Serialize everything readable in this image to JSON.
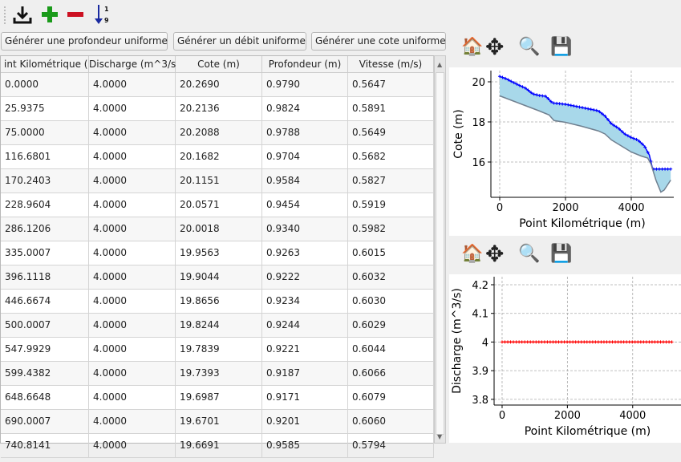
{
  "toolbar": {
    "icons": [
      "import-icon",
      "add-row-icon",
      "remove-row-icon",
      "sort-ascending-icon"
    ],
    "sort_label_top": "1",
    "sort_label_bottom": "9",
    "colors": {
      "add": "#1a9a1a",
      "remove": "#cc1122",
      "sort": "#1a2aa0"
    }
  },
  "buttons": {
    "uniform_depth": "Générer une profondeur uniforme",
    "uniform_discharge": "Générer un débit uniforme",
    "uniform_elevation": "Générer une cote uniforme"
  },
  "table": {
    "columns": [
      "int Kilométrique (",
      "Discharge (m^3/s)",
      "Cote (m)",
      "Profondeur (m)",
      "Vitesse (m/s)"
    ],
    "rows": [
      [
        "0.0000",
        "4.0000",
        "20.2690",
        "0.9790",
        "0.5647"
      ],
      [
        "25.9375",
        "4.0000",
        "20.2136",
        "0.9824",
        "0.5891"
      ],
      [
        "75.0000",
        "4.0000",
        "20.2088",
        "0.9788",
        "0.5649"
      ],
      [
        "116.6801",
        "4.0000",
        "20.1682",
        "0.9704",
        "0.5682"
      ],
      [
        "170.2403",
        "4.0000",
        "20.1151",
        "0.9584",
        "0.5827"
      ],
      [
        "228.9604",
        "4.0000",
        "20.0571",
        "0.9454",
        "0.5919"
      ],
      [
        "286.1206",
        "4.0000",
        "20.0018",
        "0.9340",
        "0.5982"
      ],
      [
        "335.0007",
        "4.0000",
        "19.9563",
        "0.9263",
        "0.6015"
      ],
      [
        "396.1118",
        "4.0000",
        "19.9044",
        "0.9222",
        "0.6032"
      ],
      [
        "446.6674",
        "4.0000",
        "19.8656",
        "0.9234",
        "0.6030"
      ],
      [
        "500.0007",
        "4.0000",
        "19.8244",
        "0.9244",
        "0.6029"
      ],
      [
        "547.9929",
        "4.0000",
        "19.7839",
        "0.9221",
        "0.6044"
      ],
      [
        "599.4382",
        "4.0000",
        "19.7393",
        "0.9187",
        "0.6066"
      ],
      [
        "648.6648",
        "4.0000",
        "19.6987",
        "0.9171",
        "0.6079"
      ],
      [
        "690.0007",
        "4.0000",
        "19.6701",
        "0.9201",
        "0.6060"
      ],
      [
        "740.8141",
        "4.0000",
        "19.6691",
        "0.9585",
        "0.5794"
      ]
    ]
  },
  "plot_toolbar": {
    "icons": [
      "home-icon",
      "pan-icon",
      "zoom-icon",
      "save-icon"
    ]
  },
  "chart_data": [
    {
      "type": "area",
      "xlabel": "Point Kilométrique (m)",
      "ylabel": "Cote (m)",
      "xlim": [
        -268,
        5293
      ],
      "ylim": [
        14.24,
        20.56
      ],
      "xticks": [
        0,
        2000,
        4000
      ],
      "yticks": [
        16,
        18,
        20
      ],
      "grid": true,
      "series": [
        {
          "role": "water-surface",
          "color": "#0000ff",
          "marker": "+",
          "x": [
            0,
            200,
            400,
            600,
            800,
            1000,
            1200,
            1400,
            1600,
            2000,
            2400,
            2800,
            3000,
            3200,
            3400,
            3600,
            3800,
            4000,
            4200,
            4400,
            4550,
            4650,
            5200
          ],
          "y": [
            20.27,
            20.15,
            19.98,
            19.82,
            19.67,
            19.4,
            19.32,
            19.28,
            18.95,
            18.88,
            18.75,
            18.62,
            18.55,
            18.3,
            17.9,
            17.7,
            17.4,
            17.22,
            17.1,
            16.8,
            16.35,
            15.65,
            15.65
          ]
        },
        {
          "role": "bed",
          "color": "#708090",
          "x": [
            0,
            400,
            800,
            1200,
            1500,
            1650,
            2000,
            2500,
            3000,
            3200,
            3400,
            3800,
            4000,
            4300,
            4500,
            4600,
            4750,
            4900,
            5000,
            5200
          ],
          "y": [
            19.3,
            19.05,
            18.8,
            18.55,
            18.35,
            18.07,
            17.98,
            17.78,
            17.55,
            17.4,
            17.1,
            16.7,
            16.5,
            16.3,
            16.2,
            15.9,
            15.1,
            14.5,
            14.6,
            15.1
          ]
        }
      ],
      "fill_color": "#a8d8ea"
    },
    {
      "type": "line",
      "xlabel": "Point Kilométrique (m)",
      "ylabel": "Discharge (m^3/s)",
      "xlim": [
        -245,
        5480
      ],
      "ylim": [
        3.78,
        4.228
      ],
      "xticks": [
        0,
        2000,
        4000
      ],
      "yticks": [
        3.8,
        3.9,
        4.0,
        4.1,
        4.2
      ],
      "grid": true,
      "series": [
        {
          "color": "#ff0000",
          "marker": "+",
          "x": [
            0,
            5200
          ],
          "y": [
            4.0,
            4.0
          ]
        }
      ]
    }
  ]
}
